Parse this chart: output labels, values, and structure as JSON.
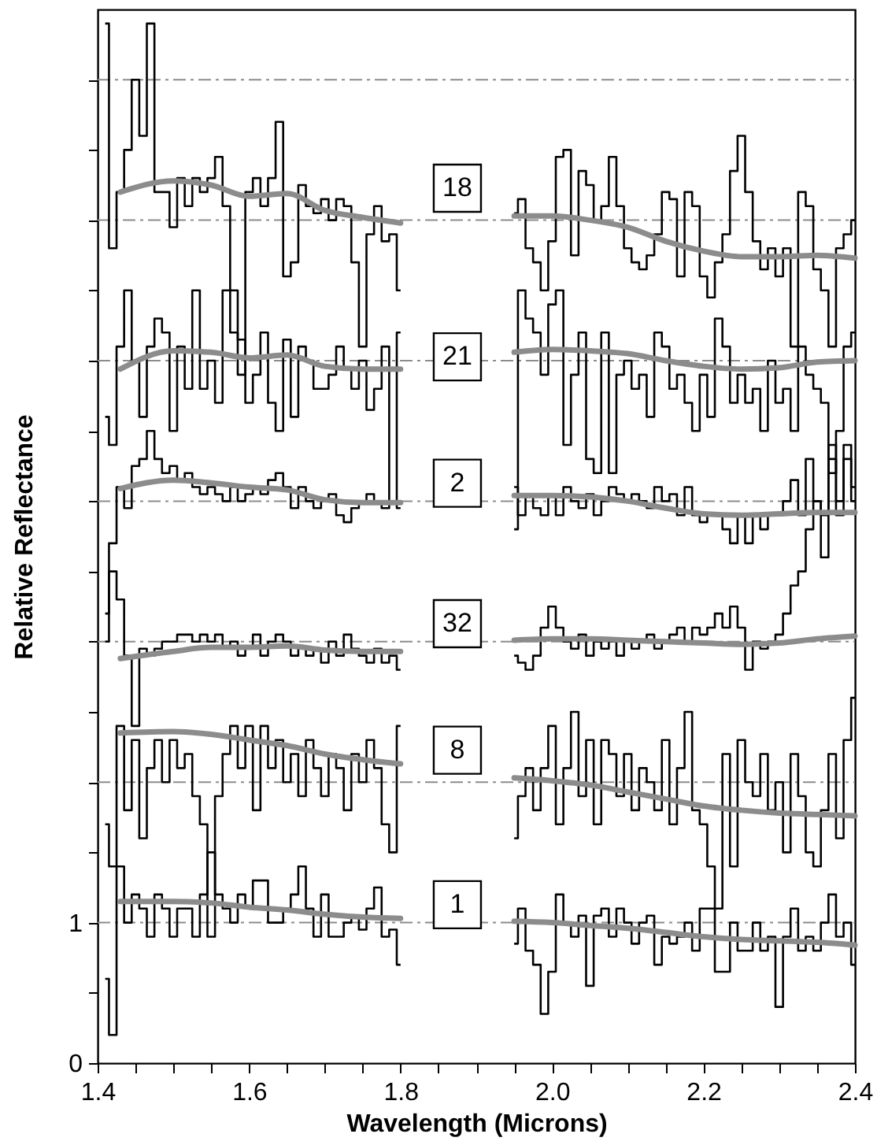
{
  "chart_data": {
    "type": "step",
    "xlabel": "Wavelength (Microns)",
    "ylabel": "Relative Reflectance",
    "xlim": [
      1.4,
      2.4
    ],
    "ylim": [
      0,
      7.5
    ],
    "xticks": [
      1.4,
      {
        "value": 1.45,
        "label": null
      },
      {
        "value": 1.5,
        "label": null
      },
      {
        "value": 1.55,
        "label": null
      },
      1.6,
      {
        "value": 1.65,
        "label": null
      },
      {
        "value": 1.7,
        "label": null
      },
      {
        "value": 1.75,
        "label": null
      },
      1.8,
      {
        "value": 1.85,
        "label": null
      },
      {
        "value": 1.9,
        "label": null
      },
      {
        "value": 1.95,
        "label": null
      },
      {
        "value": 2,
        "label": "2.0"
      },
      {
        "value": 2.05,
        "label": null
      },
      {
        "value": 2.1,
        "label": null
      },
      {
        "value": 2.15,
        "label": null
      },
      2.2,
      {
        "value": 2.25,
        "label": null
      },
      {
        "value": 2.3,
        "label": null
      },
      {
        "value": 2.35,
        "label": null
      },
      2.4
    ],
    "yticks": [
      0,
      {
        "value": 0.5,
        "label": null
      },
      1,
      {
        "value": 1.5,
        "label": null
      },
      {
        "value": 2,
        "label": null
      },
      {
        "value": 2.5,
        "label": null
      },
      {
        "value": 3,
        "label": null
      },
      {
        "value": 3.5,
        "label": null
      },
      {
        "value": 4,
        "label": null
      },
      {
        "value": 4.5,
        "label": null
      },
      {
        "value": 5,
        "label": null
      },
      {
        "value": 5.5,
        "label": null
      },
      {
        "value": 6,
        "label": null
      },
      {
        "value": 6.5,
        "label": null
      },
      {
        "value": 7,
        "label": null
      }
    ],
    "grid": false,
    "x": [
      1.41,
      1.42,
      1.43,
      1.44,
      1.45,
      1.46,
      1.47,
      1.48,
      1.49,
      1.5,
      1.51,
      1.52,
      1.53,
      1.54,
      1.55,
      1.56,
      1.57,
      1.58,
      1.59,
      1.6,
      1.61,
      1.62,
      1.63,
      1.64,
      1.65,
      1.66,
      1.67,
      1.68,
      1.69,
      1.7,
      1.71,
      1.72,
      1.73,
      1.74,
      1.75,
      1.76,
      1.77,
      1.78,
      1.79,
      1.8,
      1.875,
      1.95,
      1.96,
      1.97,
      1.98,
      1.99,
      2,
      2.01,
      2.02,
      2.03,
      2.04,
      2.05,
      2.06,
      2.07,
      2.08,
      2.09,
      2.1,
      2.11,
      2.12,
      2.13,
      2.14,
      2.15,
      2.16,
      2.17,
      2.18,
      2.19,
      2.2,
      2.21,
      2.22,
      2.23,
      2.24,
      2.25,
      2.26,
      2.27,
      2.28,
      2.29,
      2.3,
      2.31,
      2.32,
      2.33,
      2.34,
      2.35,
      2.36,
      2.37,
      2.38,
      2.39,
      2.4
    ],
    "series": [
      {
        "name": "18",
        "color": "#000000",
        "values": [
          7.4,
          5.8,
          6.2,
          6.5,
          7.0,
          6.6,
          7.4,
          6.2,
          6.2,
          5.95,
          6.3,
          6.1,
          6.3,
          6.2,
          6.3,
          6.45,
          6.1,
          5.5,
          4.9,
          6.2,
          6.3,
          6.1,
          6.3,
          6.7,
          5.6,
          5.7,
          6.25,
          6.1,
          6.05,
          6.15,
          6.0,
          6.15,
          6.1,
          5.7,
          5.1,
          5.9,
          6.1,
          5.85,
          5.9,
          5.5,
          null,
          6.05,
          6.15,
          5.8,
          5.7,
          5.5,
          5.85,
          6.45,
          6.5,
          5.75,
          6.35,
          6.25,
          6.0,
          6.1,
          6.45,
          6.1,
          5.8,
          5.7,
          5.65,
          5.75,
          5.9,
          6.2,
          6.15,
          5.6,
          6.2,
          6.1,
          5.6,
          5.45,
          5.7,
          5.9,
          6.35,
          6.6,
          6.2,
          5.85,
          5.65,
          5.8,
          5.6,
          5.8,
          5.1,
          6.2,
          6.1,
          5.65,
          5.5,
          5.1,
          5.8,
          5.9,
          6.0
        ]
      },
      {
        "name": "21",
        "color": "#000000",
        "values": [
          4.6,
          4.4,
          5.1,
          5.5,
          5.0,
          4.6,
          5.1,
          5.3,
          5.2,
          4.5,
          5.1,
          4.8,
          5.5,
          4.8,
          5.0,
          4.7,
          5.5,
          5.2,
          5.15,
          4.7,
          4.9,
          5.2,
          4.7,
          4.5,
          5.15,
          4.6,
          5.1,
          5.0,
          4.8,
          4.8,
          4.9,
          5.1,
          4.95,
          4.8,
          5.0,
          4.65,
          4.8,
          5.1,
          4.0,
          5.2,
          null,
          3.8,
          5.5,
          5.3,
          5.2,
          4.9,
          5.4,
          5.5,
          4.4,
          4.9,
          5.2,
          4.3,
          4.2,
          5.2,
          4.2,
          4.9,
          5.0,
          4.8,
          4.9,
          4.6,
          5.2,
          5.1,
          4.8,
          4.9,
          4.7,
          4.5,
          4.9,
          4.6,
          5.3,
          5.1,
          4.7,
          4.9,
          4.7,
          4.8,
          4.5,
          5.0,
          4.7,
          4.8,
          4.5,
          5.1,
          4.9,
          4.8,
          4.7,
          4.2,
          4.5,
          5.1,
          5.2
        ]
      },
      {
        "name": "2",
        "color": "#000000",
        "values": [
          3.0,
          3.7,
          4.1,
          3.95,
          4.25,
          4.3,
          4.5,
          4.3,
          4.2,
          4.25,
          4.15,
          4.2,
          4.1,
          4.05,
          4.1,
          4.05,
          4.0,
          4.1,
          4.0,
          4.05,
          4.1,
          4.05,
          4.15,
          4.2,
          4.1,
          3.95,
          4.1,
          4.0,
          3.95,
          4.0,
          4.05,
          3.9,
          3.85,
          3.95,
          4.0,
          4.05,
          4.0,
          3.95,
          4.0,
          3.95,
          null,
          4.1,
          3.9,
          4.05,
          3.95,
          3.9,
          4.05,
          3.9,
          4.1,
          4.0,
          3.95,
          4.05,
          3.9,
          4.0,
          4.1,
          4.05,
          4.0,
          4.05,
          4.0,
          3.95,
          4.1,
          4.0,
          4.05,
          3.9,
          4.1,
          3.9,
          3.85,
          3.9,
          3.9,
          3.8,
          3.7,
          3.9,
          3.7,
          3.9,
          3.8,
          3.9,
          3.9,
          4.0,
          4.15,
          3.9,
          4.3,
          4.0,
          3.9,
          4.4,
          4.0,
          4.3,
          4.1
        ]
      },
      {
        "name": "32",
        "color": "#000000",
        "values": [
          3.2,
          3.5,
          3.3,
          2.9,
          2.4,
          2.95,
          2.9,
          2.95,
          3.0,
          3.0,
          3.05,
          3.05,
          3.0,
          3.05,
          3.0,
          3.05,
          2.95,
          3.0,
          2.9,
          2.95,
          3.05,
          2.9,
          3.0,
          3.05,
          3.0,
          2.9,
          2.95,
          2.9,
          2.95,
          2.85,
          3.0,
          2.9,
          3.05,
          2.95,
          2.9,
          2.85,
          2.95,
          2.85,
          2.9,
          2.8,
          null,
          2.9,
          2.85,
          2.8,
          2.9,
          3.1,
          3.25,
          3.1,
          3.0,
          2.95,
          3.05,
          2.9,
          3.0,
          2.95,
          3.0,
          2.9,
          3.0,
          2.95,
          3.0,
          3.05,
          2.95,
          3.0,
          3.05,
          3.1,
          3.0,
          3.1,
          3.05,
          3.1,
          3.2,
          3.1,
          3.25,
          3.1,
          2.8,
          3.0,
          2.95,
          3.0,
          3.05,
          3.2,
          3.4,
          3.5,
          3.8,
          4.0,
          3.6,
          4.3,
          3.9,
          4.4,
          4.0
        ]
      },
      {
        "name": "8",
        "color": "#000000",
        "values": [
          1.7,
          1.4,
          2.4,
          1.8,
          2.3,
          1.6,
          2.1,
          2.3,
          2.0,
          2.3,
          2.1,
          2.2,
          1.9,
          1.7,
          0.9,
          1.9,
          2.2,
          2.4,
          2.1,
          2.4,
          1.8,
          2.4,
          2.1,
          2.3,
          2.0,
          2.2,
          1.9,
          2.3,
          2.1,
          1.9,
          2.2,
          2.1,
          1.8,
          2.2,
          2.0,
          2.3,
          2.1,
          1.7,
          1.5,
          2.4,
          null,
          1.6,
          1.9,
          2.1,
          1.8,
          2.1,
          2.4,
          1.7,
          2.1,
          2.5,
          1.9,
          2.3,
          1.7,
          2.3,
          2.2,
          1.9,
          2.2,
          1.8,
          2.1,
          2.0,
          1.8,
          2.3,
          1.7,
          2.1,
          2.5,
          1.8,
          1.7,
          1.4,
          1.1,
          2.2,
          1.4,
          2.3,
          2.0,
          1.9,
          2.2,
          1.8,
          2.0,
          1.5,
          2.2,
          1.9,
          1.5,
          1.4,
          1.8,
          2.2,
          1.6,
          2.3,
          2.6
        ]
      },
      {
        "name": "1",
        "color": "#000000",
        "values": [
          0.6,
          0.2,
          1.4,
          1.0,
          1.2,
          1.1,
          0.9,
          1.2,
          1.1,
          0.9,
          1.1,
          1.1,
          0.9,
          1.2,
          1.5,
          1.2,
          1.1,
          1.0,
          1.2,
          1.1,
          1.3,
          1.3,
          1.0,
          1.0,
          1.1,
          1.2,
          1.4,
          1.1,
          0.9,
          1.2,
          0.9,
          0.9,
          1.0,
          1.05,
          0.95,
          1.1,
          1.25,
          0.9,
          0.95,
          0.7,
          null,
          0.85,
          1.1,
          0.8,
          0.7,
          0.35,
          0.65,
          1.2,
          1.0,
          0.9,
          1.05,
          0.55,
          1.05,
          1.1,
          0.9,
          1.1,
          1.0,
          0.85,
          1.0,
          1.05,
          0.7,
          0.9,
          0.85,
          0.9,
          1.0,
          0.8,
          1.1,
          1.1,
          0.65,
          0.65,
          1.0,
          0.8,
          0.8,
          1.0,
          0.8,
          0.9,
          0.4,
          0.9,
          1.1,
          0.8,
          0.9,
          0.8,
          1.0,
          1.2,
          0.9,
          1.0,
          0.7
        ]
      },
      {
        "type": "line",
        "color": "#8c8c8c",
        "x": [
          1.43,
          1.5,
          1.55,
          1.6,
          1.65,
          1.7,
          1.75,
          1.8,
          1.875,
          1.95,
          2,
          2.05,
          2.1,
          2.15,
          2.2,
          2.25,
          2.3,
          2.35,
          2.4
        ],
        "values": [
          6.2,
          6.28,
          6.25,
          6.17,
          6.19,
          6.07,
          6.02,
          5.98,
          null,
          6.03,
          6.03,
          6.0,
          5.95,
          5.85,
          5.78,
          5.74,
          5.74,
          5.75,
          5.73
        ]
      },
      {
        "type": "line",
        "color": "#8c8c8c",
        "x": [
          1.43,
          1.5,
          1.55,
          1.6,
          1.65,
          1.7,
          1.75,
          1.8,
          1.875,
          1.95,
          2,
          2.05,
          2.1,
          2.15,
          2.2,
          2.25,
          2.3,
          2.35,
          2.4
        ],
        "values": [
          4.94,
          5.07,
          5.06,
          5.02,
          5.04,
          4.96,
          4.94,
          4.94,
          null,
          5.06,
          5.08,
          5.07,
          5.05,
          5.0,
          4.96,
          4.94,
          4.95,
          4.99,
          5.0
        ]
      },
      {
        "type": "line",
        "color": "#8c8c8c",
        "x": [
          1.43,
          1.5,
          1.55,
          1.6,
          1.65,
          1.7,
          1.75,
          1.8,
          1.875,
          1.95,
          2,
          2.05,
          2.1,
          2.15,
          2.2,
          2.25,
          2.3,
          2.35,
          2.4
        ],
        "values": [
          4.09,
          4.15,
          4.13,
          4.1,
          4.08,
          4.01,
          3.99,
          3.99,
          null,
          4.04,
          4.04,
          4.03,
          4.0,
          3.95,
          3.91,
          3.9,
          3.91,
          3.92,
          3.92
        ]
      },
      {
        "type": "line",
        "color": "#8c8c8c",
        "x": [
          1.43,
          1.5,
          1.55,
          1.6,
          1.65,
          1.7,
          1.75,
          1.8,
          1.875,
          1.95,
          2,
          2.05,
          2.1,
          2.15,
          2.2,
          2.25,
          2.3,
          2.35,
          2.4
        ],
        "values": [
          2.88,
          2.93,
          2.96,
          2.96,
          2.97,
          2.94,
          2.93,
          2.93,
          null,
          3.01,
          3.02,
          3.02,
          3.01,
          3.0,
          2.99,
          2.98,
          2.99,
          3.02,
          3.04
        ]
      },
      {
        "type": "line",
        "color": "#8c8c8c",
        "x": [
          1.43,
          1.5,
          1.55,
          1.6,
          1.65,
          1.7,
          1.75,
          1.8,
          1.875,
          1.95,
          2,
          2.05,
          2.1,
          2.15,
          2.2,
          2.25,
          2.3,
          2.35,
          2.4
        ],
        "values": [
          2.35,
          2.36,
          2.34,
          2.3,
          2.26,
          2.2,
          2.16,
          2.13,
          null,
          2.03,
          2.01,
          1.98,
          1.93,
          1.88,
          1.83,
          1.8,
          1.78,
          1.77,
          1.76
        ]
      },
      {
        "type": "line",
        "color": "#8c8c8c",
        "x": [
          1.43,
          1.5,
          1.55,
          1.6,
          1.65,
          1.7,
          1.75,
          1.8,
          1.875,
          1.95,
          2,
          2.05,
          2.1,
          2.15,
          2.2,
          2.25,
          2.3,
          2.35,
          2.4
        ],
        "values": [
          1.15,
          1.15,
          1.14,
          1.11,
          1.09,
          1.06,
          1.04,
          1.03,
          null,
          1.01,
          1.0,
          0.98,
          0.96,
          0.93,
          0.9,
          0.88,
          0.87,
          0.86,
          0.84
        ]
      }
    ],
    "ref_lines": [
      {
        "axis": "y",
        "value": 1,
        "color": "#8c8c8c",
        "line_style": "dashed"
      },
      {
        "axis": "y",
        "value": 2,
        "color": "#8c8c8c",
        "line_style": "dashed"
      },
      {
        "axis": "y",
        "value": 3,
        "color": "#8c8c8c",
        "line_style": "dashed"
      },
      {
        "axis": "y",
        "value": 4,
        "color": "#8c8c8c",
        "line_style": "dashed"
      },
      {
        "axis": "y",
        "value": 5,
        "color": "#8c8c8c",
        "line_style": "dashed"
      },
      {
        "axis": "y",
        "value": 6,
        "color": "#8c8c8c",
        "line_style": "dashed"
      },
      {
        "axis": "y",
        "value": 7,
        "color": "#8c8c8c",
        "line_style": "dashed"
      }
    ]
  }
}
